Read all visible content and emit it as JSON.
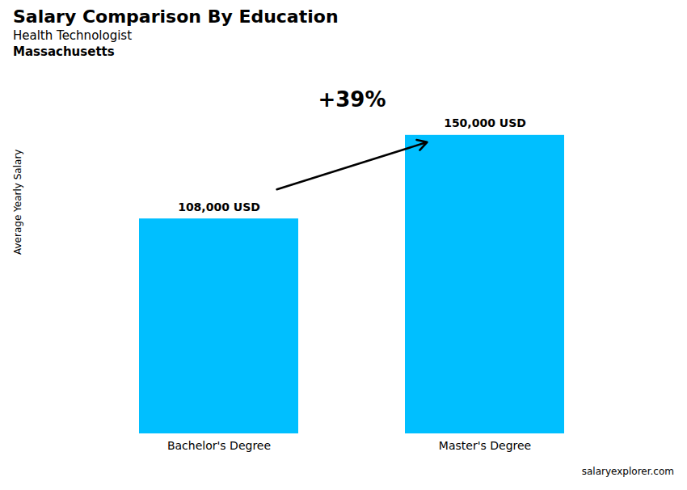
{
  "chart_data": {
    "type": "bar",
    "title": "Salary Comparison By Education",
    "subtitle": [
      "Health Technologist",
      "Massachusetts"
    ],
    "annotations": [
      "+39%",
      "salaryexplorer.com"
    ],
    "y_label": "Average Yearly Salary",
    "categories": [
      "Bachelor's Degree",
      "Master's Degree"
    ],
    "values": [
      108000,
      150000
    ],
    "value_labels": [
      "108,000 USD",
      "150,000 USD"
    ],
    "color": "#00BFFF",
    "ylim": [
      0,
      180000
    ],
    "tick_labels": "x",
    "data_labels": true,
    "grid": false
  }
}
